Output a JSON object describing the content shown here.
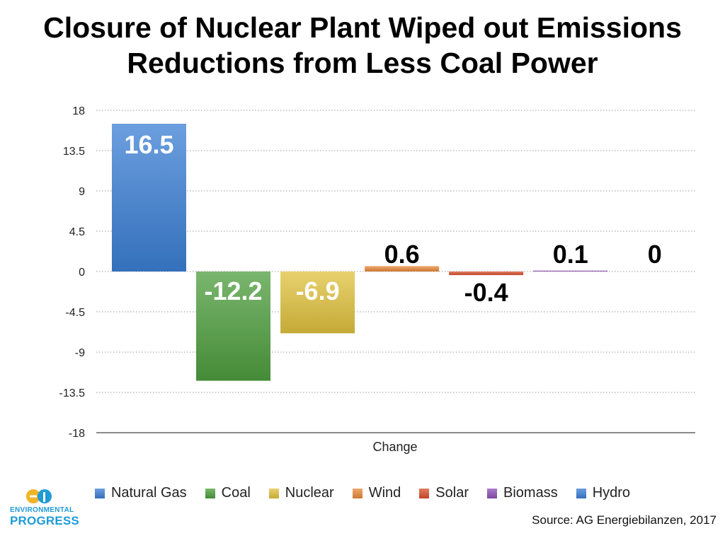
{
  "title_line1": "Closure of Nuclear Plant Wiped out Emissions",
  "title_line2": "Reductions from Less Coal Power",
  "source": "Source: AG Energiebilanzen, 2017",
  "logo": {
    "line1": "ENVIRONMENTAL",
    "line2": "PROGRESS",
    "icon": "ep-logo-icon"
  },
  "chart_data": {
    "type": "bar",
    "categories": [
      "Change"
    ],
    "xlabel": "Change",
    "ylabel": "",
    "ylim": [
      -18,
      18
    ],
    "yticks": [
      "18",
      "13.5",
      "9",
      "4.5",
      "0",
      "-4.5",
      "-9",
      "-13.5",
      "-18"
    ],
    "grid": true,
    "legend_position": "bottom",
    "series": [
      {
        "name": "Natural Gas",
        "values": [
          16.5
        ],
        "label": "16.5",
        "color": "#3b7fd4"
      },
      {
        "name": "Coal",
        "values": [
          -12.2
        ],
        "label": "-12.2",
        "color": "#4e9e3e"
      },
      {
        "name": "Nuclear",
        "values": [
          -6.9
        ],
        "label": "-6.9",
        "color": "#e0c13e"
      },
      {
        "name": "Wind",
        "values": [
          0.6
        ],
        "label": "0.6",
        "color": "#e8893a"
      },
      {
        "name": "Solar",
        "values": [
          -0.4
        ],
        "label": "-0.4",
        "color": "#d9502e"
      },
      {
        "name": "Biomass",
        "values": [
          0.1
        ],
        "label": "0.1",
        "color": "#8e4fb8"
      },
      {
        "name": "Hydro",
        "values": [
          0
        ],
        "label": "0",
        "color": "#3b7fd4"
      }
    ]
  }
}
